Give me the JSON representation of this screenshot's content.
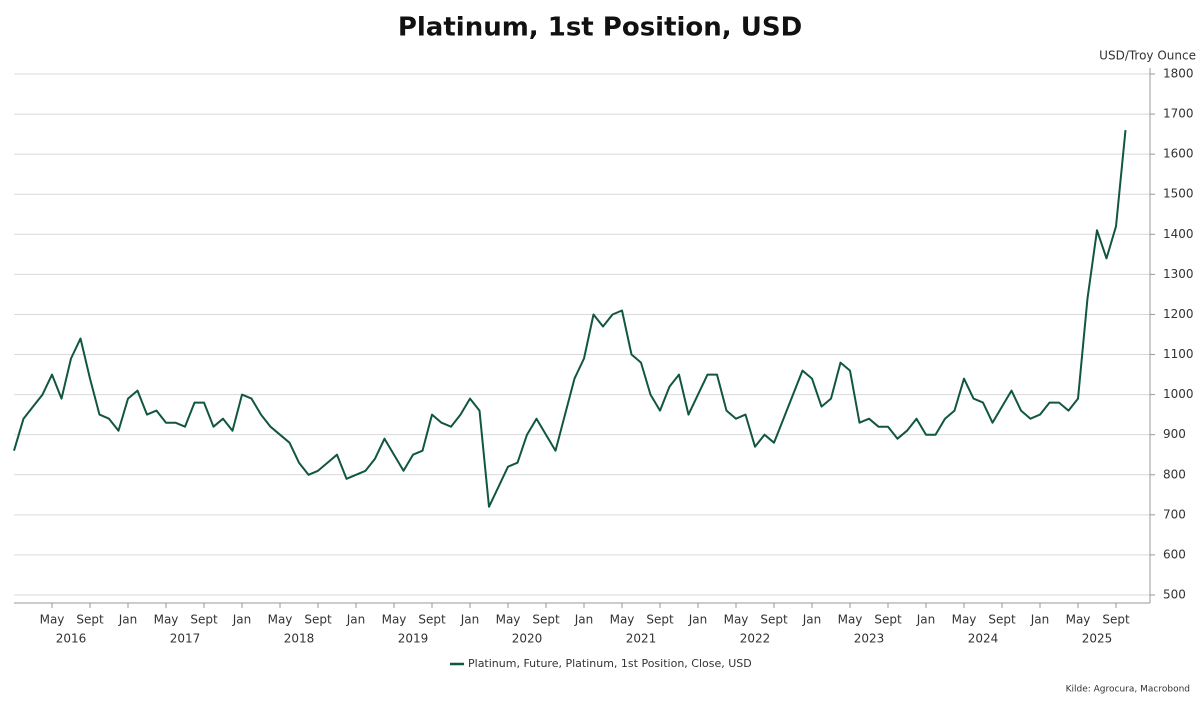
{
  "chart_data": {
    "type": "line",
    "title": "Platinum, 1st Position, USD",
    "y_unit_label": "USD/Troy Ounce",
    "source": "Kilde: Agrocura, Macrobond",
    "x": [
      "2016-01",
      "2016-02",
      "2016-03",
      "2016-04",
      "2016-05",
      "2016-06",
      "2016-07",
      "2016-08",
      "2016-09",
      "2016-10",
      "2016-11",
      "2016-12",
      "2017-01",
      "2017-02",
      "2017-03",
      "2017-04",
      "2017-05",
      "2017-06",
      "2017-07",
      "2017-08",
      "2017-09",
      "2017-10",
      "2017-11",
      "2017-12",
      "2018-01",
      "2018-02",
      "2018-03",
      "2018-04",
      "2018-05",
      "2018-06",
      "2018-07",
      "2018-08",
      "2018-09",
      "2018-10",
      "2018-11",
      "2018-12",
      "2019-01",
      "2019-02",
      "2019-03",
      "2019-04",
      "2019-05",
      "2019-06",
      "2019-07",
      "2019-08",
      "2019-09",
      "2019-10",
      "2019-11",
      "2019-12",
      "2020-01",
      "2020-02",
      "2020-03",
      "2020-04",
      "2020-05",
      "2020-06",
      "2020-07",
      "2020-08",
      "2020-09",
      "2020-10",
      "2020-11",
      "2020-12",
      "2021-01",
      "2021-02",
      "2021-03",
      "2021-04",
      "2021-05",
      "2021-06",
      "2021-07",
      "2021-08",
      "2021-09",
      "2021-10",
      "2021-11",
      "2021-12",
      "2022-01",
      "2022-02",
      "2022-03",
      "2022-04",
      "2022-05",
      "2022-06",
      "2022-07",
      "2022-08",
      "2022-09",
      "2022-10",
      "2022-11",
      "2022-12",
      "2023-01",
      "2023-02",
      "2023-03",
      "2023-04",
      "2023-05",
      "2023-06",
      "2023-07",
      "2023-08",
      "2023-09",
      "2023-10",
      "2023-11",
      "2023-12",
      "2024-01",
      "2024-02",
      "2024-03",
      "2024-04",
      "2024-05",
      "2024-06",
      "2024-07",
      "2024-08",
      "2024-09",
      "2024-10",
      "2024-11",
      "2024-12",
      "2025-01",
      "2025-02",
      "2025-03",
      "2025-04",
      "2025-05",
      "2025-06",
      "2025-07",
      "2025-08",
      "2025-09",
      "2025-10"
    ],
    "series": [
      {
        "name": "Platinum, Future, Platinum, 1st Position, Close, USD",
        "color": "#115740",
        "values": [
          860,
          940,
          970,
          1000,
          1050,
          990,
          1090,
          1140,
          1040,
          950,
          940,
          910,
          990,
          1010,
          950,
          960,
          930,
          930,
          920,
          980,
          980,
          920,
          940,
          910,
          1000,
          990,
          950,
          920,
          900,
          880,
          830,
          800,
          810,
          830,
          850,
          790,
          800,
          810,
          840,
          890,
          850,
          810,
          850,
          860,
          950,
          930,
          920,
          950,
          990,
          960,
          720,
          770,
          820,
          830,
          900,
          940,
          900,
          860,
          950,
          1040,
          1090,
          1200,
          1170,
          1200,
          1210,
          1100,
          1080,
          1000,
          960,
          1020,
          1050,
          950,
          1000,
          1050,
          1050,
          960,
          940,
          950,
          870,
          900,
          880,
          940,
          1000,
          1060,
          1040,
          970,
          990,
          1080,
          1060,
          930,
          940,
          920,
          920,
          890,
          910,
          940,
          900,
          900,
          940,
          960,
          1040,
          990,
          980,
          930,
          970,
          1010,
          960,
          940,
          950,
          980,
          980,
          960,
          990,
          1240,
          1410,
          1340,
          1420,
          1660
        ]
      }
    ],
    "xlim": [
      "2016-01",
      "2025-12"
    ],
    "xticks": [
      {
        "value": "2016-05",
        "label": "May"
      },
      {
        "value": "2016-09",
        "label": "Sept"
      },
      {
        "value": "2017-01",
        "label": "Jan"
      },
      {
        "value": "2017-05",
        "label": "May"
      },
      {
        "value": "2017-09",
        "label": "Sept"
      },
      {
        "value": "2018-01",
        "label": "Jan"
      },
      {
        "value": "2018-05",
        "label": "May"
      },
      {
        "value": "2018-09",
        "label": "Sept"
      },
      {
        "value": "2019-01",
        "label": "Jan"
      },
      {
        "value": "2019-05",
        "label": "May"
      },
      {
        "value": "2019-09",
        "label": "Sept"
      },
      {
        "value": "2020-01",
        "label": "Jan"
      },
      {
        "value": "2020-05",
        "label": "May"
      },
      {
        "value": "2020-09",
        "label": "Sept"
      },
      {
        "value": "2021-01",
        "label": "Jan"
      },
      {
        "value": "2021-05",
        "label": "May"
      },
      {
        "value": "2021-09",
        "label": "Sept"
      },
      {
        "value": "2022-01",
        "label": "Jan"
      },
      {
        "value": "2022-05",
        "label": "May"
      },
      {
        "value": "2022-09",
        "label": "Sept"
      },
      {
        "value": "2023-01",
        "label": "Jan"
      },
      {
        "value": "2023-05",
        "label": "May"
      },
      {
        "value": "2023-09",
        "label": "Sept"
      },
      {
        "value": "2024-01",
        "label": "Jan"
      },
      {
        "value": "2024-05",
        "label": "May"
      },
      {
        "value": "2024-09",
        "label": "Sept"
      },
      {
        "value": "2025-01",
        "label": "Jan"
      },
      {
        "value": "2025-05",
        "label": "May"
      },
      {
        "value": "2025-09",
        "label": "Sept"
      }
    ],
    "x_year_labels": [
      "2016",
      "2017",
      "2018",
      "2019",
      "2020",
      "2021",
      "2022",
      "2023",
      "2024",
      "2025"
    ],
    "ylim": [
      480,
      1815
    ],
    "yticks": [
      500,
      600,
      700,
      800,
      900,
      1000,
      1100,
      1200,
      1300,
      1400,
      1500,
      1600,
      1700,
      1800
    ],
    "grid": true
  }
}
